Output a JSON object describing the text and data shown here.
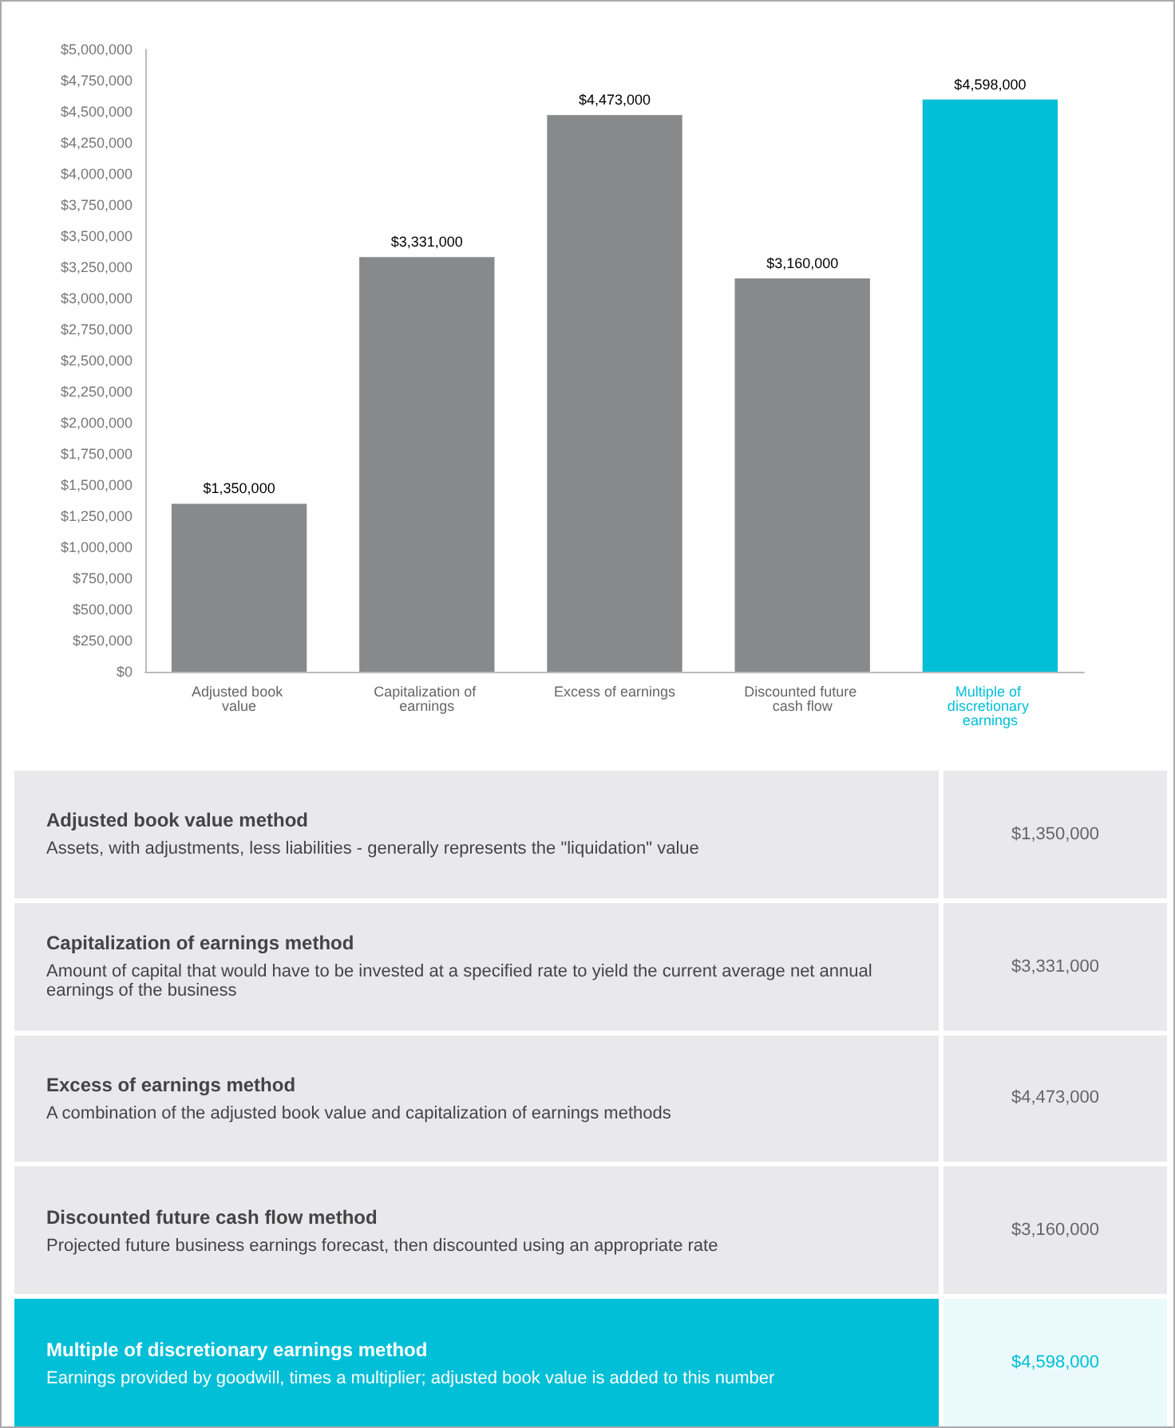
{
  "chart_data": {
    "type": "bar",
    "categories": [
      "Adjusted book value",
      "Capitalization of earnings",
      "Excess of earnings",
      "Discounted future cash flow",
      "Multiple of discretionary earnings"
    ],
    "values": [
      1350000,
      3331000,
      4473000,
      3160000,
      4598000
    ],
    "colors": [
      "#88898b",
      "#88898b",
      "#88898b",
      "#88898b",
      "#00bfd6"
    ],
    "value_labels": [
      "$1,350,000",
      "$3,331,000",
      "$4,473,000",
      "$3,160,000",
      "$4,598,000"
    ],
    "ylim": [
      0,
      5000000
    ],
    "yticks": [
      {
        "value": 0,
        "label": "$0"
      },
      {
        "value": 250000,
        "label": "$250,000"
      },
      {
        "value": 500000,
        "label": "$500,000"
      },
      {
        "value": 750000,
        "label": "$750,000"
      },
      {
        "value": 1000000,
        "label": "$1,000,000"
      },
      {
        "value": 1250000,
        "label": "$1,250,000"
      },
      {
        "value": 1500000,
        "label": "$1,500,000"
      },
      {
        "value": 1750000,
        "label": "$1,750,000"
      },
      {
        "value": 2000000,
        "label": "$2,000,000"
      },
      {
        "value": 2250000,
        "label": "$2,250,000"
      },
      {
        "value": 2500000,
        "label": "$2,500,000"
      },
      {
        "value": 2750000,
        "label": "$2,750,000"
      },
      {
        "value": 3000000,
        "label": "$3,000,000"
      },
      {
        "value": 3250000,
        "label": "$3,250,000"
      },
      {
        "value": 3500000,
        "label": "$3,500,000"
      },
      {
        "value": 3750000,
        "label": "$3,750,000"
      },
      {
        "value": 4000000,
        "label": "$4,000,000"
      },
      {
        "value": 4250000,
        "label": "$4,250,000"
      },
      {
        "value": 4500000,
        "label": "$4,500,000"
      },
      {
        "value": 4750000,
        "label": "$4,750,000"
      },
      {
        "value": 5000000,
        "label": "$5,000,000"
      }
    ],
    "annotations": [
      "Adjusted book value method",
      "Assets, with adjustments, less liabilities - generally represents the \"liquidation\" value",
      "Capitalization of earnings method",
      "Amount of capital that would have to be invested at a specified rate to yield the current average net annual earnings of the business",
      "Excess of earnings method",
      "A combination of the adjusted book value and capitalization of earnings methods",
      "Discounted future cash flow method",
      "Projected future business earnings forecast, then discounted using an appropriate rate",
      "Multiple of discretionary earnings method",
      "Earnings provided by goodwill, times a multiplier; adjusted book value is added to this number"
    ],
    "grid": false
  }
}
